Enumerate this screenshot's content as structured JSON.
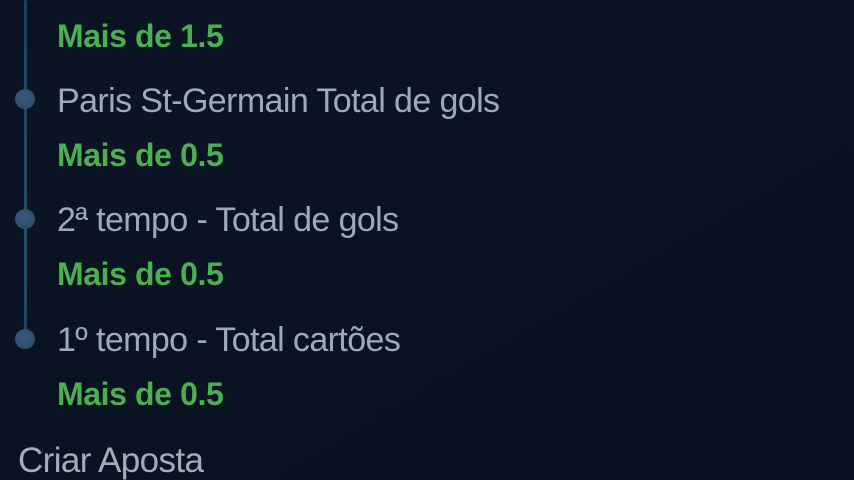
{
  "theme": {
    "background": "#0a1422",
    "accent_green": "#4cb052",
    "text_muted": "#9caabb",
    "timeline_line": "#233f5b",
    "timeline_dot": "#31506f",
    "footer_text": "#a3adba"
  },
  "betslip": {
    "items": [
      {
        "selection": "Mais de 1.5"
      },
      {
        "market": "Paris St-Germain Total de gols",
        "selection": "Mais de 0.5"
      },
      {
        "market": "2ª tempo - Total de gols",
        "selection": "Mais de 0.5"
      },
      {
        "market": "1º tempo - Total cartões",
        "selection": "Mais de 0.5"
      }
    ],
    "footer_label": "Criar Aposta"
  }
}
